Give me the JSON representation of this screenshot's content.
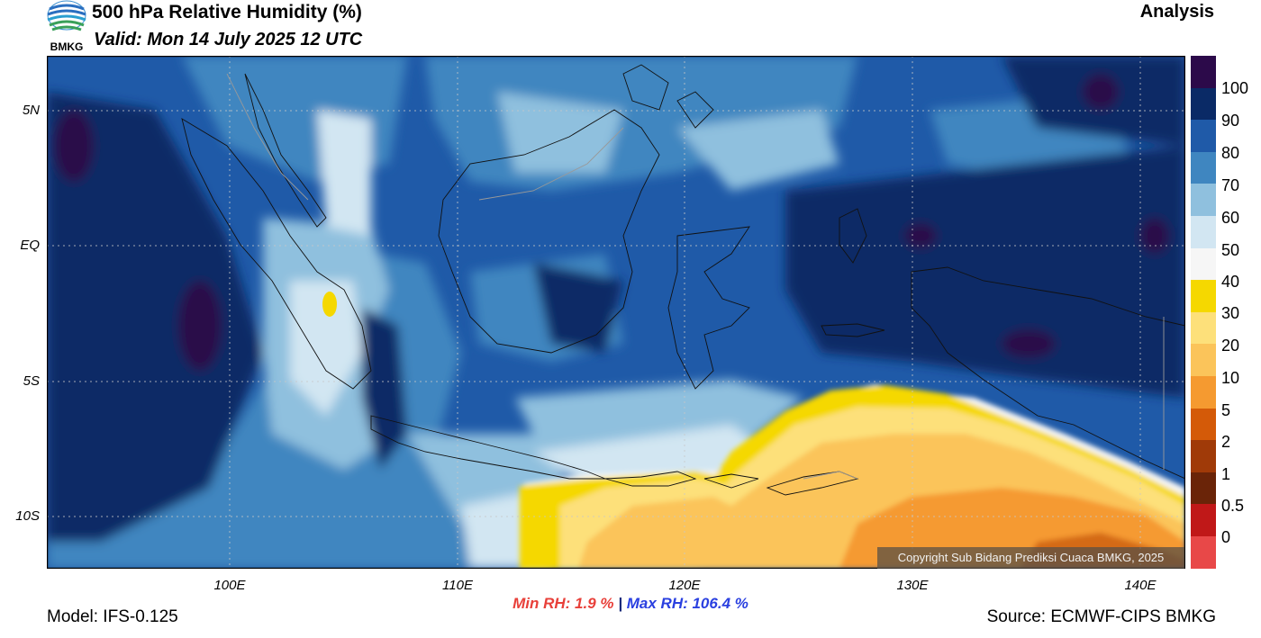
{
  "header": {
    "title": "500 hPa Relative Humidity (%)",
    "valid": "Valid: Mon 14 July 2025 12 UTC",
    "analysis": "Analysis",
    "logo_text": "BMKG"
  },
  "map": {
    "region": "Indonesia",
    "lat_labels": [
      "5N",
      "EQ",
      "5S",
      "10S"
    ],
    "lon_labels": [
      "100E",
      "110E",
      "120E",
      "130E",
      "140E"
    ],
    "lat_range": [
      -12,
      7
    ],
    "lon_range": [
      92,
      142
    ],
    "copyright": "Copyright Sub Bidang Prediksi Cuaca BMKG, 2025"
  },
  "colorbar": {
    "labels": [
      "100",
      "90",
      "80",
      "70",
      "60",
      "50",
      "40",
      "30",
      "20",
      "10",
      "5",
      "2",
      "1",
      "0.5",
      "0"
    ],
    "colors": [
      "#2c0a4a",
      "#0a2a66",
      "#1f5aa8",
      "#3f86c0",
      "#8fc0de",
      "#d2e6f2",
      "#f6f6f6",
      "#f5d800",
      "#fde07a",
      "#fbc45a",
      "#f59a30",
      "#d45a08",
      "#a03a08",
      "#6a2408",
      "#c01818",
      "#e84848"
    ]
  },
  "stats": {
    "min": "Min RH:   1.9 %",
    "sep": "|",
    "max": "Max RH: 106.4 %"
  },
  "footer": {
    "model": "Model: IFS-0.125",
    "source": "Source: ECMWF-CIPS BMKG"
  }
}
